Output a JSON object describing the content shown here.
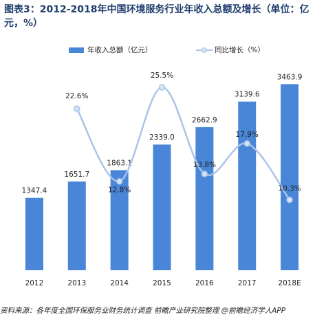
{
  "chart_data": {
    "type": "bar-line",
    "title": "图表3：2012-2018年中国环境服务行业年收入总额及增长（单位：亿元，%）",
    "source": "资料来源：各年度全国环保服务业财务统计调查  前瞻产业研究院整理 @前瞻经济学人APP",
    "categories": [
      "2012",
      "2013",
      "2014",
      "2015",
      "2016",
      "2017",
      "2018E"
    ],
    "series": [
      {
        "name": "年收入总额（亿元）",
        "type": "bar",
        "color": "#4a86d8",
        "values": [
          1347.4,
          1651.7,
          1863.1,
          2339.0,
          2662.9,
          3139.6,
          3463.9
        ],
        "value_labels": [
          "1347.4",
          "1651.7",
          "1863.1",
          "2339.0",
          "2662.9",
          "3139.6",
          "3463.9"
        ]
      },
      {
        "name": "同比增长（%）",
        "type": "line",
        "axis": "y2",
        "color": "#a9c4e8",
        "values": [
          null,
          22.6,
          12.8,
          25.5,
          13.8,
          17.9,
          10.3
        ],
        "value_labels": [
          null,
          "22.6%",
          "12.8%",
          "25.5%",
          "13.8%",
          "17.9%",
          "10.3%"
        ]
      }
    ],
    "ylim": [
      0,
      3750
    ],
    "y2lim": [
      0.8,
      28
    ]
  }
}
